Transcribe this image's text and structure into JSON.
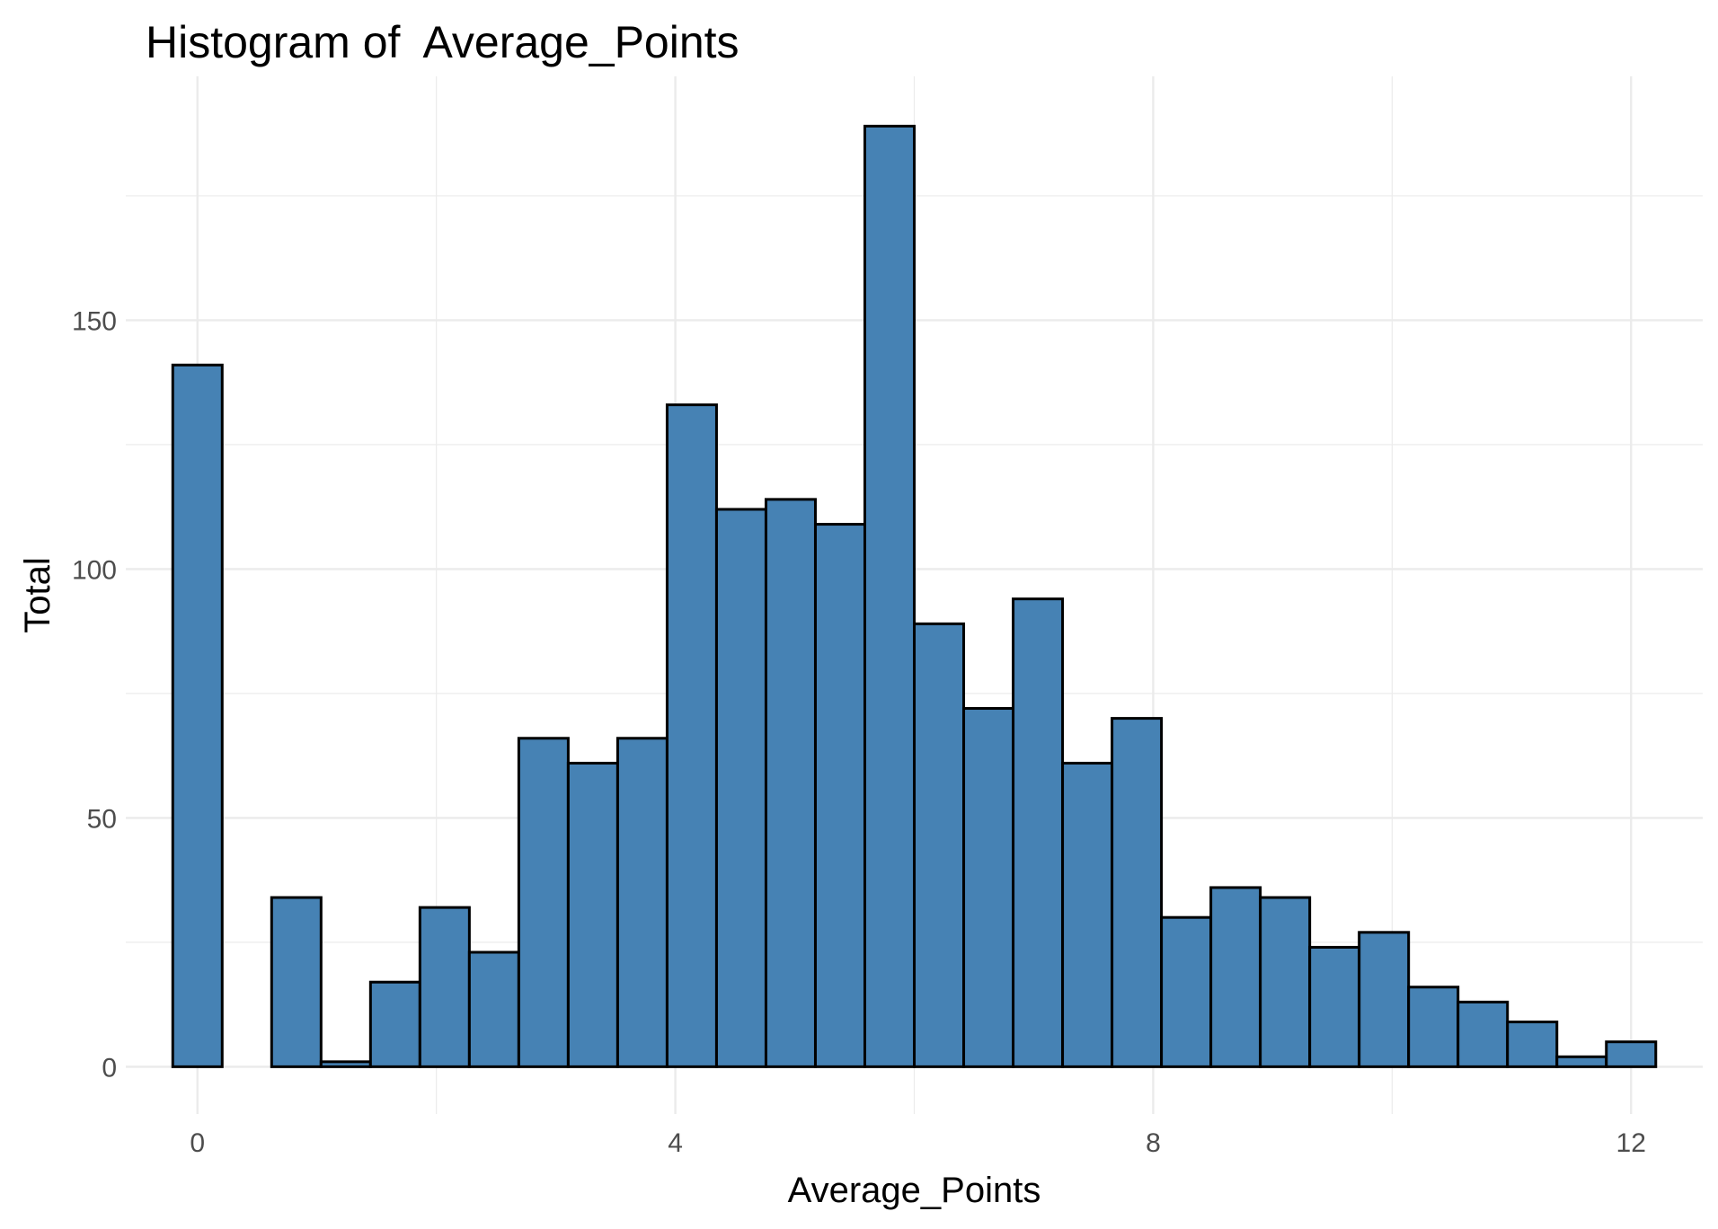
{
  "chart_data": {
    "type": "bar",
    "title": "Histogram of  Average_Points",
    "xlabel": "Average_Points",
    "ylabel": "Total",
    "xlim": [
      -0.6,
      12.6
    ],
    "ylim": [
      -9.5,
      199
    ],
    "x_ticks": [
      0,
      4,
      8,
      12
    ],
    "y_ticks": [
      0,
      50,
      100,
      150
    ],
    "bin_width": 0.4138,
    "bin_start": -0.2069,
    "values": [
      141,
      0,
      34,
      1,
      17,
      32,
      23,
      66,
      61,
      66,
      133,
      112,
      114,
      109,
      189,
      89,
      72,
      94,
      61,
      70,
      30,
      36,
      34,
      24,
      27,
      16,
      13,
      9,
      2,
      5
    ],
    "grid": true,
    "legend": "none",
    "bar_color": "#4682b4",
    "bar_outline": "#000000"
  }
}
